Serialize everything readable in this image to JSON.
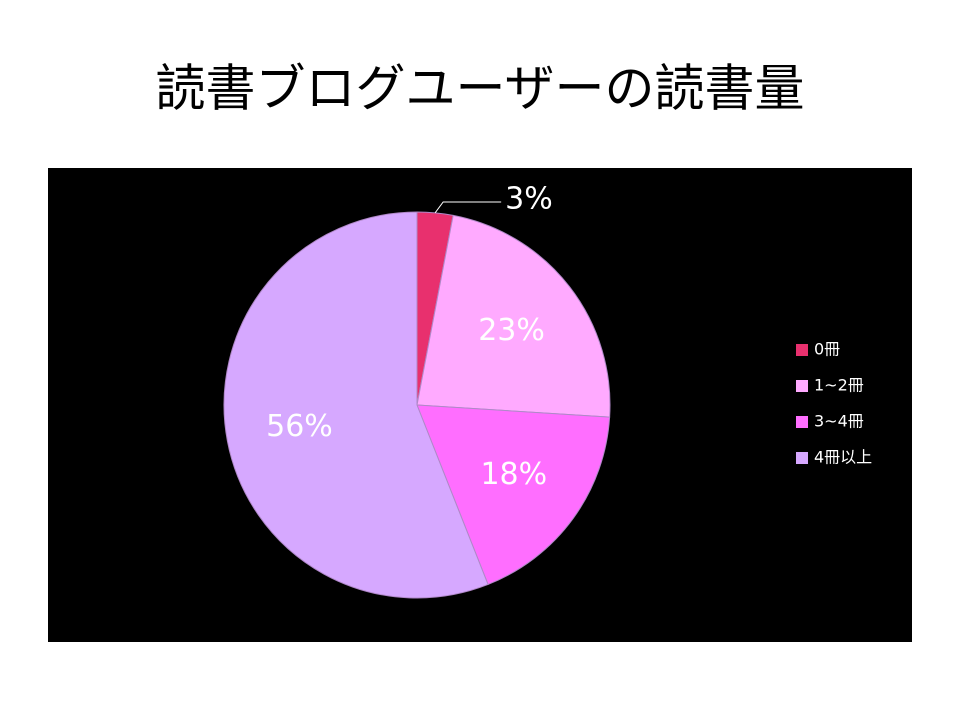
{
  "chart_data": {
    "type": "pie",
    "title": "読書ブログユーザーの読書量",
    "categories": [
      "0冊",
      "1~2冊",
      "3~4冊",
      "4冊以上"
    ],
    "values": [
      3,
      23,
      18,
      56
    ],
    "value_labels": [
      "3%",
      "23%",
      "18%",
      "56%"
    ],
    "colors": [
      "#e8306e",
      "#ffaaff",
      "#ff6eff",
      "#d6a8ff"
    ],
    "legend": "right"
  }
}
